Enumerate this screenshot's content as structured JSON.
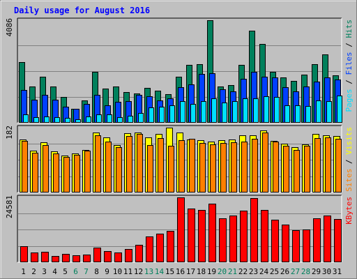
{
  "chart_data": {
    "title": "Daily usage for August 2016",
    "type": "bar",
    "days": [
      "1",
      "2",
      "3",
      "4",
      "5",
      "6",
      "7",
      "8",
      "9",
      "10",
      "11",
      "12",
      "13",
      "14",
      "15",
      "16",
      "17",
      "18",
      "19",
      "20",
      "21",
      "22",
      "23",
      "24",
      "25",
      "26",
      "27",
      "28",
      "29",
      "30",
      "31"
    ],
    "weekend_days": [
      "6",
      "7",
      "13",
      "14",
      "20",
      "21",
      "27",
      "28"
    ],
    "colors": {
      "background": "#c0c0c0",
      "title": "#0000ff",
      "hits": "#00805c",
      "files": "#0040ff",
      "pages": "#00e0ff",
      "visits": "#ffff00",
      "sites": "#ff8000",
      "kbytes": "#ff0000",
      "weekend_label": "#00805c",
      "weekday_label": "#000000"
    },
    "panels": [
      {
        "id": "hits-files-pages",
        "max_label": "4086",
        "ylim": [
          0,
          4086
        ],
        "legend": [
          {
            "key": "pages",
            "label": "Pages"
          },
          {
            "key": "sep1",
            "label": " / "
          },
          {
            "key": "files",
            "label": "Files"
          },
          {
            "key": "sep2",
            "label": " / "
          },
          {
            "key": "hits",
            "label": "Hits"
          }
        ],
        "series": [
          {
            "key": "hits",
            "values": [
              2406,
              1442,
              1824,
              1441,
              1017,
              549,
              887,
              2025,
              1367,
              1442,
              1210,
              1175,
              1390,
              1288,
              1128,
              1845,
              2319,
              2332,
              4086,
              1433,
              1512,
              2312,
              3668,
              3143,
              2032,
              1814,
              1662,
              1910,
              2331,
              2721,
              1890
            ]
          },
          {
            "key": "files",
            "values": [
              1302,
              925,
              1106,
              909,
              645,
              549,
              742,
              1104,
              704,
              840,
              874,
              1107,
              1043,
              893,
              960,
              1418,
              1541,
              1936,
              1985,
              1348,
              1241,
              1763,
              2032,
              1841,
              1800,
              1406,
              1244,
              1438,
              1628,
              1801,
              1735
            ]
          },
          {
            "key": "pages",
            "values": [
              341,
              228,
              238,
              228,
              190,
              137,
              255,
              341,
              321,
              236,
              276,
              380,
              607,
              638,
              701,
              852,
              742,
              853,
              964,
              812,
              869,
              965,
              962,
              1052,
              1035,
              700,
              703,
              675,
              903,
              848,
              1085
            ]
          }
        ]
      },
      {
        "id": "visits-sites",
        "max_label": "182",
        "ylim": [
          0,
          182
        ],
        "legend": [
          {
            "key": "sites",
            "label": "Sites"
          },
          {
            "key": "sep",
            "label": " / "
          },
          {
            "key": "visits",
            "label": "Visits"
          }
        ],
        "series": [
          {
            "key": "visits",
            "values": [
              148,
              118,
              140,
              116,
              104,
              110,
              119,
              168,
              154,
              134,
              167,
              168,
              154,
              164,
              182,
              169,
              148,
              147,
              143,
              146,
              149,
              160,
              161,
              175,
              145,
              137,
              128,
              136,
              164,
              160,
              159
            ]
          },
          {
            "key": "sites",
            "values": [
              145,
              112,
              133,
              110,
              100,
              105,
              117,
              160,
              142,
              128,
              159,
              164,
              133,
              152,
              132,
              147,
              151,
              138,
              136,
              139,
              140,
              142,
              151,
              168,
              142,
              132,
              119,
              131,
              153,
              154,
              150
            ]
          }
        ]
      },
      {
        "id": "kbytes",
        "max_label": "24581",
        "ylim": [
          0,
          24581
        ],
        "legend": [
          {
            "key": "kbytes",
            "label": "KBytes"
          }
        ],
        "series": [
          {
            "key": "kbytes",
            "values": [
              6200,
              3600,
              4000,
              2500,
              3200,
              2700,
              2900,
              5600,
              4300,
              3600,
              5000,
              6500,
              9900,
              10900,
              11800,
              24581,
              20400,
              19700,
              22200,
              16700,
              17700,
              19600,
              24200,
              19900,
              16200,
              14200,
              12200,
              12500,
              16700,
              17800,
              16500
            ]
          }
        ]
      }
    ]
  }
}
